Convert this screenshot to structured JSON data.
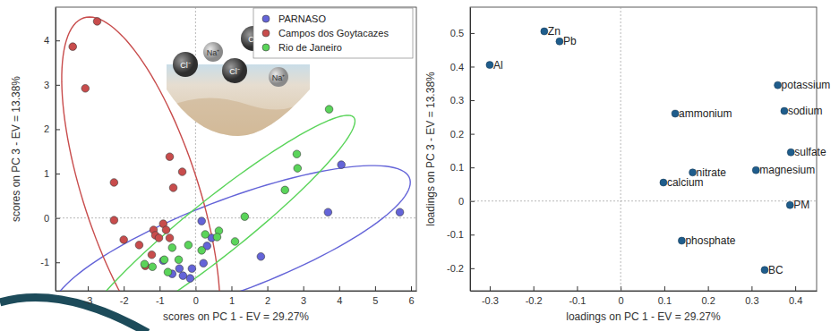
{
  "chart_data": [
    {
      "type": "scatter",
      "xlabel": "scores on PC 1 - EV = 29.27%",
      "ylabel": "scores on PC 3 - EV = 13.38%",
      "xlim": [
        -3.9,
        6.15
      ],
      "ylim": [
        -1.64,
        4.75
      ],
      "xticks": [
        -3,
        -2,
        -1,
        0,
        1,
        2,
        3,
        4,
        5,
        6
      ],
      "yticks": [
        -1,
        0,
        1,
        2,
        3,
        4
      ],
      "legend": "upper right",
      "marker": "circle",
      "annotations": [
        "Cl⁻",
        "Na⁺",
        "Cl⁻",
        "Cl⁻",
        "Na⁺"
      ],
      "series": [
        {
          "name": "PARNASO",
          "color": "#6464d8",
          "x": [
            4.06,
            3.69,
            5.69,
            1.82,
            0.17,
            0.45,
            0.32,
            0.22,
            -0.15,
            -0.35,
            -0.65,
            -0.45,
            -0.9,
            -0.1
          ],
          "values": [
            1.2,
            0.13,
            0.13,
            -0.87,
            -0.07,
            -0.45,
            -0.63,
            -1.02,
            -1.36,
            -1.3,
            -1.26,
            -1.14,
            -0.96,
            -1.14
          ]
        },
        {
          "name": "Campos dos Goytacazes",
          "color": "#c84c4c",
          "x": [
            -3.42,
            -2.74,
            -3.07,
            -2.27,
            -2.27,
            -2.0,
            -1.57,
            -1.17,
            -1.12,
            -1.02,
            -0.9,
            -0.72,
            -0.37,
            -0.62,
            -0.72,
            -0.82,
            -1.4,
            -1.22
          ],
          "values": [
            3.86,
            4.43,
            2.92,
            0.8,
            -0.05,
            -0.49,
            -0.61,
            -0.27,
            -0.39,
            -0.45,
            -0.13,
            1.38,
            1.04,
            0.68,
            -0.45,
            -0.27,
            -1.08,
            -0.83
          ]
        },
        {
          "name": "Rio de Janeiro",
          "color": "#5ad45a",
          "x": [
            3.72,
            2.82,
            2.84,
            2.49,
            1.37,
            0.27,
            0.65,
            1.1,
            -0.2,
            -0.65,
            -0.47,
            0.17,
            -1.2,
            -1.42,
            -0.77,
            -0.87,
            0.6
          ],
          "values": [
            2.45,
            1.44,
            1.12,
            0.63,
            0.03,
            -0.37,
            -0.29,
            -0.53,
            -0.61,
            -0.67,
            -0.94,
            -0.73,
            -1.1,
            -1.04,
            -1.22,
            -0.94,
            -0.43
          ]
        }
      ]
    },
    {
      "type": "scatter",
      "xlabel": "loadings on PC 1 - EV = 29.27%",
      "ylabel": "loadings on PC 3 - EV = 13.38%",
      "xlim": [
        -0.345,
        0.449
      ],
      "ylim": [
        -0.267,
        0.577
      ],
      "xticks": [
        -0.3,
        -0.2,
        -0.1,
        0,
        0.1,
        0.2,
        0.3,
        0.4
      ],
      "yticks": [
        -0.2,
        -0.1,
        0,
        0.1,
        0.2,
        0.3,
        0.4,
        0.5
      ],
      "marker": "circle",
      "color": "#1f5d8c",
      "categories": [
        "Zn",
        "Pb",
        "Al",
        "potassium",
        "sodium",
        "ammonium",
        "sulfate",
        "magnesium",
        "nitrate",
        "calcium",
        "PM",
        "phosphate",
        "BC"
      ],
      "x": [
        -0.175,
        -0.14,
        -0.3,
        0.36,
        0.375,
        0.125,
        0.39,
        0.31,
        0.165,
        0.098,
        0.388,
        0.14,
        0.33
      ],
      "values": [
        0.505,
        0.475,
        0.405,
        0.345,
        0.268,
        0.26,
        0.145,
        0.092,
        0.085,
        0.055,
        -0.012,
        -0.118,
        -0.205
      ]
    }
  ]
}
